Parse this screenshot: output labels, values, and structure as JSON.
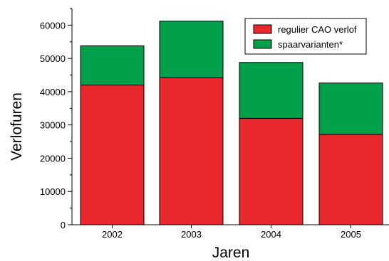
{
  "chart_data": {
    "type": "bar",
    "stacked": true,
    "categories": [
      "2002",
      "2003",
      "2004",
      "2005"
    ],
    "series": [
      {
        "name": "regulier CAO verlof",
        "color": "#e8282d",
        "values": [
          42000,
          44200,
          32000,
          27200
        ]
      },
      {
        "name": "spaarvarianten*",
        "color": "#03a04b",
        "values": [
          11800,
          17000,
          16800,
          15400
        ]
      }
    ],
    "totals": [
      53800,
      61200,
      48800,
      42600
    ],
    "xlabel": "Jaren",
    "ylabel": "Verlofuren",
    "ylim": [
      0,
      65000
    ],
    "yticks": [
      0,
      10000,
      20000,
      30000,
      40000,
      50000,
      60000
    ],
    "grid": false,
    "legend_position": "top-right"
  }
}
